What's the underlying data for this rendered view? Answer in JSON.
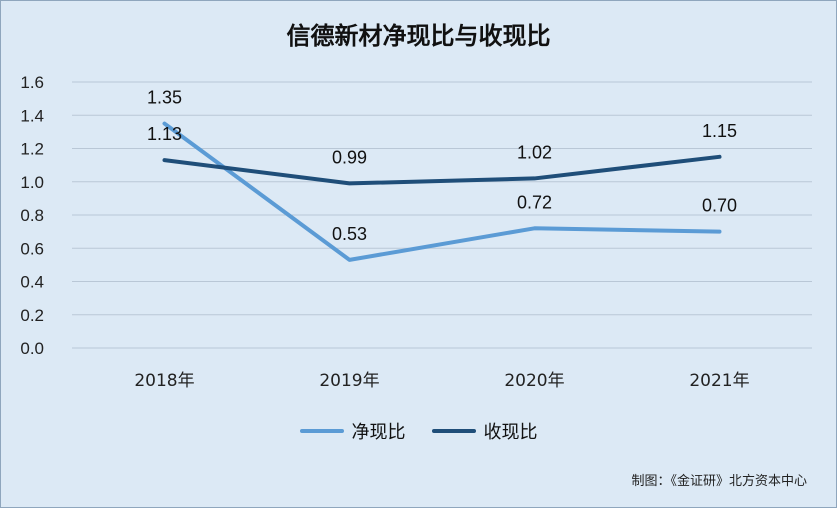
{
  "chart_data": {
    "type": "line",
    "title": "信德新材净现比与收现比",
    "categories": [
      "2018年",
      "2019年",
      "2020年",
      "2021年"
    ],
    "ylim": [
      0,
      1.6
    ],
    "yticks": [
      "0.0",
      "0.2",
      "0.4",
      "0.6",
      "0.8",
      "1.0",
      "1.2",
      "1.4",
      "1.6"
    ],
    "grid": true,
    "legend_position": "bottom",
    "series": [
      {
        "name": "净现比",
        "color": "#5b9bd5",
        "values": [
          1.35,
          0.53,
          0.72,
          0.7
        ],
        "labels": [
          "1.35",
          "0.53",
          "0.72",
          "0.70"
        ]
      },
      {
        "name": "收现比",
        "color": "#1f4e79",
        "values": [
          1.13,
          0.99,
          1.02,
          1.15
        ],
        "labels": [
          "1.13",
          "0.99",
          "1.02",
          "1.15"
        ]
      }
    ]
  },
  "credit": "制图：《金证研》北方资本中心"
}
